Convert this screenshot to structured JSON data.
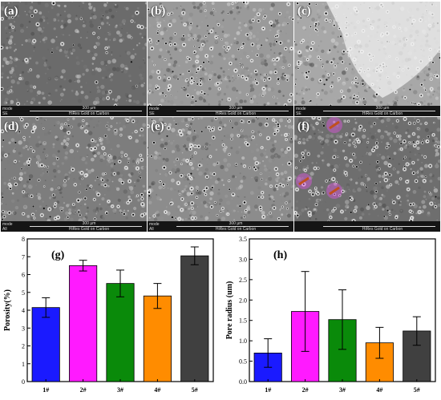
{
  "panels": [
    {
      "label": "(a)",
      "mode": "mode",
      "sub": "SE",
      "scale": "300 µm",
      "coating": "HiRes Gold on Carbon",
      "tone": "#6b6b6b"
    },
    {
      "label": "(b)",
      "mode": "mode",
      "sub": "SE",
      "scale": "300 µm",
      "coating": "HiRes Gold on Carbon",
      "tone": "#9a9a9a"
    },
    {
      "label": "(c)",
      "mode": "mode",
      "sub": "SE",
      "scale": "300 µm",
      "coating": "HiRes Gold on Carbon",
      "tone": "#a8a8a8"
    },
    {
      "label": "(d)",
      "mode": "mode",
      "sub": "All",
      "scale": "300 µm",
      "coating": "HiRes Gold on Carbon",
      "tone": "#7d7d7d"
    },
    {
      "label": "(e)",
      "mode": "mode",
      "sub": "All",
      "scale": "300 µm",
      "coating": "HiRes Gold on Carbon",
      "tone": "#8c8c8c"
    },
    {
      "label": "(f)",
      "mode": "",
      "sub": "",
      "scale": "",
      "coating": "HiRes Gold on Carbon",
      "tone": "#6e6e6e"
    }
  ],
  "chart_data": [
    {
      "type": "bar",
      "panel_label": "(g)",
      "categories": [
        "1#",
        "2#",
        "3#",
        "4#",
        "5#"
      ],
      "values": [
        4.15,
        6.5,
        5.5,
        4.8,
        7.05
      ],
      "errors": [
        0.55,
        0.3,
        0.75,
        0.7,
        0.5
      ],
      "colors": [
        "#1a1aff",
        "#ff1aff",
        "#0a8a0a",
        "#ff8c00",
        "#404040"
      ],
      "ylabel": "Porosity(%)",
      "ylim": [
        0,
        8
      ],
      "yticks": [
        0,
        1,
        2,
        3,
        4,
        5,
        6,
        7,
        8
      ]
    },
    {
      "type": "bar",
      "panel_label": "(h)",
      "categories": [
        "1#",
        "2#",
        "3#",
        "4#",
        "5#"
      ],
      "values": [
        0.7,
        1.72,
        1.52,
        0.95,
        1.24
      ],
      "errors": [
        0.35,
        0.98,
        0.73,
        0.38,
        0.35
      ],
      "colors": [
        "#1a1aff",
        "#ff1aff",
        "#0a8a0a",
        "#ff8c00",
        "#404040"
      ],
      "ylabel": "Pore radius (um)",
      "ylim": [
        0,
        3.5
      ],
      "yticks": [
        0.0,
        0.5,
        1.0,
        1.5,
        2.0,
        2.5,
        3.0,
        3.5
      ]
    }
  ]
}
